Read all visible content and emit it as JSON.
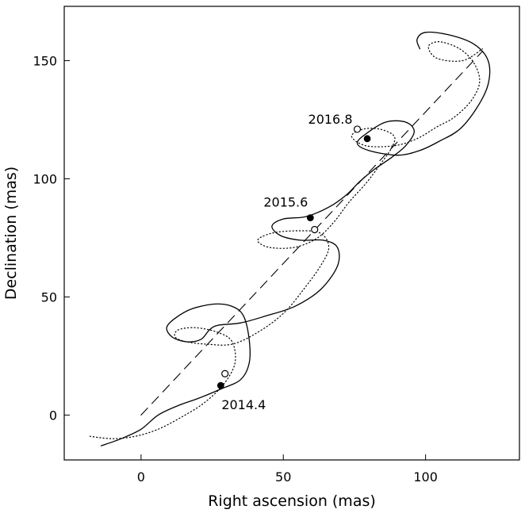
{
  "chart_data": {
    "type": "line",
    "xlabel": "Right ascension (mas)",
    "ylabel": "Declination (mas)",
    "xlim": [
      -27,
      133
    ],
    "ylim": [
      -19,
      173
    ],
    "x_ticks": [
      0,
      50,
      100
    ],
    "y_ticks": [
      0,
      50,
      100,
      150
    ],
    "grid": false,
    "series": [
      {
        "style": "solid",
        "points": [
          [
            -14,
            -13
          ],
          [
            -7,
            -10
          ],
          [
            0,
            -6
          ],
          [
            6,
            0
          ],
          [
            13,
            4
          ],
          [
            20,
            7
          ],
          [
            28,
            11
          ],
          [
            35,
            15
          ],
          [
            38,
            22
          ],
          [
            38,
            32
          ],
          [
            36,
            42
          ],
          [
            32,
            46
          ],
          [
            26,
            47
          ],
          [
            18,
            45
          ],
          [
            12,
            41
          ],
          [
            9,
            37
          ],
          [
            11,
            33
          ],
          [
            16,
            31
          ],
          [
            21,
            32
          ],
          [
            24,
            36
          ],
          [
            27,
            38
          ],
          [
            35,
            39
          ],
          [
            44,
            42
          ],
          [
            54,
            46
          ],
          [
            63,
            53
          ],
          [
            69,
            63
          ],
          [
            69,
            71
          ],
          [
            64,
            74
          ],
          [
            56,
            74
          ],
          [
            49,
            76
          ],
          [
            46,
            80
          ],
          [
            50,
            83
          ],
          [
            58,
            84
          ],
          [
            66,
            88
          ],
          [
            72,
            93
          ],
          [
            77,
            99
          ],
          [
            82,
            104
          ],
          [
            88,
            109
          ],
          [
            93,
            114
          ],
          [
            96,
            120
          ],
          [
            93,
            124
          ],
          [
            86,
            124
          ],
          [
            79,
            119
          ],
          [
            76,
            115
          ],
          [
            80,
            112
          ],
          [
            90,
            110
          ],
          [
            98,
            112
          ],
          [
            105,
            116
          ],
          [
            112,
            121
          ],
          [
            118,
            130
          ],
          [
            122,
            140
          ],
          [
            122,
            150
          ],
          [
            117,
            157
          ],
          [
            108,
            161
          ],
          [
            100,
            162
          ],
          [
            97,
            159
          ],
          [
            98,
            155
          ]
        ]
      },
      {
        "style": "dotted",
        "points": [
          [
            -18,
            -9
          ],
          [
            -10,
            -10
          ],
          [
            -2,
            -9
          ],
          [
            6,
            -6
          ],
          [
            14,
            -1
          ],
          [
            22,
            5
          ],
          [
            29,
            13
          ],
          [
            33,
            22
          ],
          [
            32,
            31
          ],
          [
            27,
            35
          ],
          [
            19,
            37
          ],
          [
            13,
            36
          ],
          [
            12,
            33
          ],
          [
            16,
            31
          ],
          [
            23,
            30
          ],
          [
            32,
            30
          ],
          [
            41,
            35
          ],
          [
            50,
            43
          ],
          [
            57,
            53
          ],
          [
            63,
            63
          ],
          [
            66,
            71
          ],
          [
            63,
            77
          ],
          [
            55,
            78
          ],
          [
            46,
            77
          ],
          [
            41,
            74
          ],
          [
            45,
            71
          ],
          [
            54,
            71
          ],
          [
            62,
            75
          ],
          [
            68,
            82
          ],
          [
            73,
            90
          ],
          [
            79,
            98
          ],
          [
            84,
            106
          ],
          [
            88,
            113
          ],
          [
            89,
            118
          ],
          [
            84,
            121
          ],
          [
            78,
            121
          ],
          [
            74,
            118
          ],
          [
            79,
            114
          ],
          [
            89,
            114
          ],
          [
            97,
            117
          ],
          [
            104,
            122
          ],
          [
            110,
            126
          ],
          [
            116,
            133
          ],
          [
            119,
            141
          ],
          [
            117,
            149
          ],
          [
            112,
            155
          ],
          [
            105,
            158
          ],
          [
            101,
            156
          ],
          [
            104,
            151
          ],
          [
            113,
            150
          ],
          [
            120,
            155
          ]
        ]
      },
      {
        "style": "dashed",
        "points": [
          [
            0,
            0
          ],
          [
            120,
            154
          ]
        ]
      }
    ],
    "markers": [
      {
        "epoch": "2014.4",
        "x": 28,
        "y": 12.5,
        "filled": true
      },
      {
        "epoch": "2014.4",
        "x": 29.5,
        "y": 17.5,
        "filled": false
      },
      {
        "epoch": "2015.6",
        "x": 59.5,
        "y": 83.5,
        "filled": true
      },
      {
        "epoch": "2015.6",
        "x": 61,
        "y": 78.5,
        "filled": false
      },
      {
        "epoch": "2016.8",
        "x": 79.5,
        "y": 117,
        "filled": true
      },
      {
        "epoch": "2016.8",
        "x": 76,
        "y": 121,
        "filled": false
      }
    ],
    "annotations": [
      {
        "text": "2014.4",
        "x": 28,
        "y": 12.5,
        "placement": "below-right"
      },
      {
        "text": "2015.6",
        "x": 59.5,
        "y": 83.5,
        "placement": "above-left"
      },
      {
        "text": "2016.8",
        "x": 76,
        "y": 121,
        "placement": "left"
      }
    ]
  }
}
